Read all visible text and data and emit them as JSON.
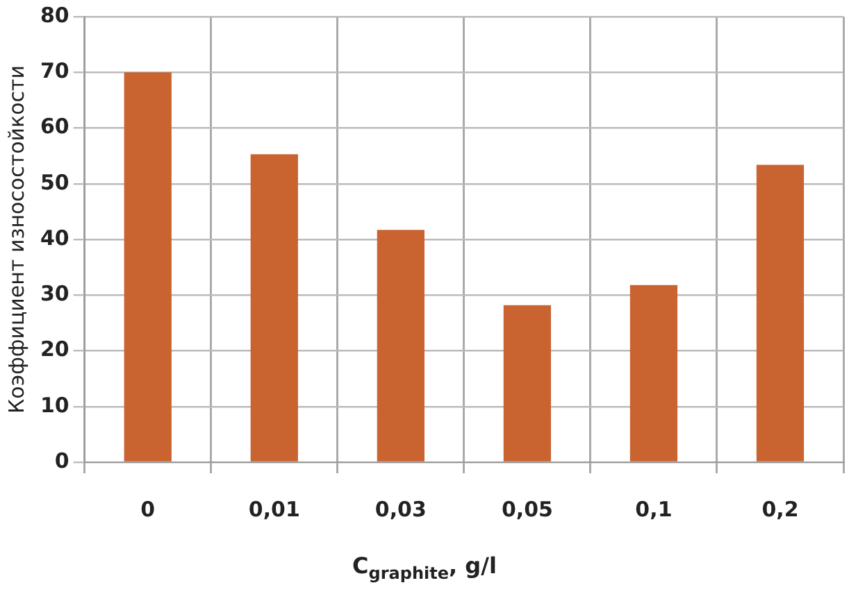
{
  "chart_data": {
    "type": "bar",
    "xlabel": "C$_{graphite}$, g/l",
    "ylabel": "Коэффициент износостойкости",
    "categories": [
      "0",
      "0,01",
      "0,03",
      "0,05",
      "0,1",
      "0,2"
    ],
    "values": [
      70,
      55.3,
      41.7,
      28.2,
      31.8,
      53.4
    ],
    "color": "#c96431",
    "ylim": [
      0,
      80
    ],
    "yticks": [
      0,
      10,
      20,
      30,
      40,
      50,
      60,
      70,
      80
    ],
    "grid": true
  }
}
